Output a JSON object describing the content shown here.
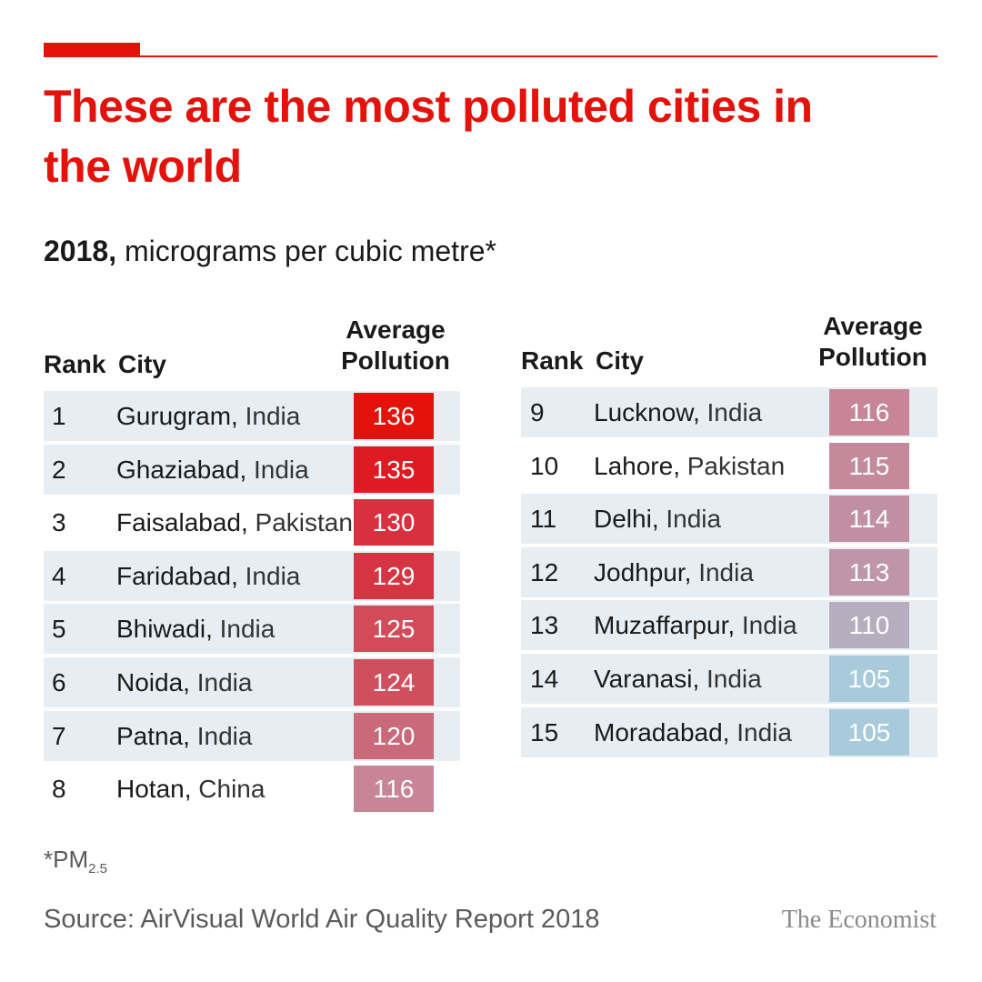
{
  "colors": {
    "accent": "#e3120b",
    "row_shade": "#e6eef3"
  },
  "title": "These are the most polluted cities in the world",
  "subtitle_year": "2018,",
  "subtitle_rest": "micrograms per cubic metre*",
  "headers": {
    "rank": "Rank",
    "city": "City",
    "avg_line1": "Average",
    "avg_line2": "Pollution"
  },
  "chart_data": {
    "type": "table",
    "title": "These are the most polluted cities in the world",
    "subtitle": "2018, micrograms per cubic metre*",
    "columns": [
      "Rank",
      "City",
      "Average Pollution"
    ],
    "rows": [
      {
        "rank": "1",
        "city": "Gurugram",
        "country": "India",
        "value": 136,
        "color": "#e3120b"
      },
      {
        "rank": "2",
        "city": "Ghaziabad",
        "country": "India",
        "value": 135,
        "color": "#e01a22"
      },
      {
        "rank": "3",
        "city": "Faisalabad",
        "country": "Pakistan",
        "value": 130,
        "color": "#d9303f"
      },
      {
        "rank": "4",
        "city": "Faridabad",
        "country": "India",
        "value": 129,
        "color": "#d53543"
      },
      {
        "rank": "5",
        "city": "Bhiwadi",
        "country": "India",
        "value": 125,
        "color": "#d14b59"
      },
      {
        "rank": "6",
        "city": "Noida",
        "country": "India",
        "value": 124,
        "color": "#cf4f5e"
      },
      {
        "rank": "7",
        "city": "Patna",
        "country": "India",
        "value": 120,
        "color": "#c9697a"
      },
      {
        "rank": "8",
        "city": "Hotan",
        "country": "China",
        "value": 116,
        "color": "#c78597"
      },
      {
        "rank": "9",
        "city": "Lucknow",
        "country": "India",
        "value": 116,
        "color": "#c78597"
      },
      {
        "rank": "10",
        "city": "Lahore",
        "country": "Pakistan",
        "value": 115,
        "color": "#c48a9c"
      },
      {
        "rank": "11",
        "city": "Delhi",
        "country": "India",
        "value": 114,
        "color": "#c28fa2"
      },
      {
        "rank": "12",
        "city": "Jodhpur",
        "country": "India",
        "value": 113,
        "color": "#bf95a9"
      },
      {
        "rank": "13",
        "city": "Muzaffarpur",
        "country": "India",
        "value": 110,
        "color": "#b6adbf"
      },
      {
        "rank": "14",
        "city": "Varanasi",
        "country": "India",
        "value": 105,
        "color": "#a8cadb"
      },
      {
        "rank": "15",
        "city": "Moradabad",
        "country": "India",
        "value": 105,
        "color": "#a8cadb"
      }
    ]
  },
  "footnote": {
    "text": "*PM",
    "subscript": "2.5"
  },
  "source": "Source: AirVisual World Air Quality Report 2018",
  "brand": "The Economist"
}
